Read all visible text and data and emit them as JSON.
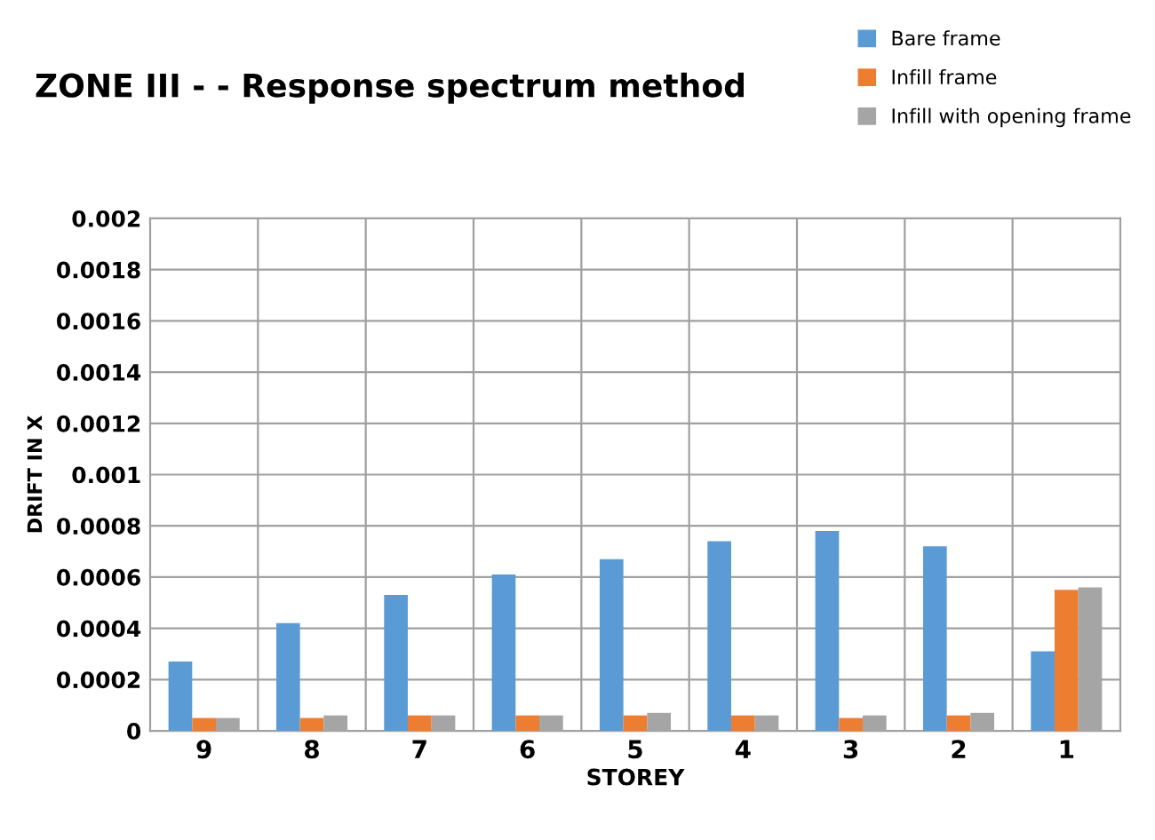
{
  "chart_data": {
    "type": "bar",
    "title": "ZONE III - - Response spectrum method",
    "xlabel": "STOREY",
    "ylabel": "DRIFT IN X",
    "categories": [
      "9",
      "8",
      "7",
      "6",
      "5",
      "4",
      "3",
      "2",
      "1"
    ],
    "series": [
      {
        "name": "Bare frame",
        "color": "#5b9bd5",
        "values": [
          0.00027,
          0.00042,
          0.00053,
          0.00061,
          0.00067,
          0.00074,
          0.00078,
          0.00072,
          0.00031
        ]
      },
      {
        "name": "Infill frame",
        "color": "#ed7d31",
        "values": [
          5e-05,
          5e-05,
          6e-05,
          6e-05,
          6e-05,
          6e-05,
          5e-05,
          6e-05,
          0.00055
        ]
      },
      {
        "name": "Infill with opening frame",
        "color": "#a5a5a5",
        "values": [
          5e-05,
          6e-05,
          6e-05,
          6e-05,
          7e-05,
          6e-05,
          6e-05,
          7e-05,
          0.00056
        ]
      }
    ],
    "ylim": [
      0,
      0.002
    ],
    "yticks": [
      0,
      0.0002,
      0.0004,
      0.0006,
      0.0008,
      0.001,
      0.0012,
      0.0014,
      0.0016,
      0.0018,
      0.002
    ],
    "grid": true,
    "legend": "top right"
  }
}
